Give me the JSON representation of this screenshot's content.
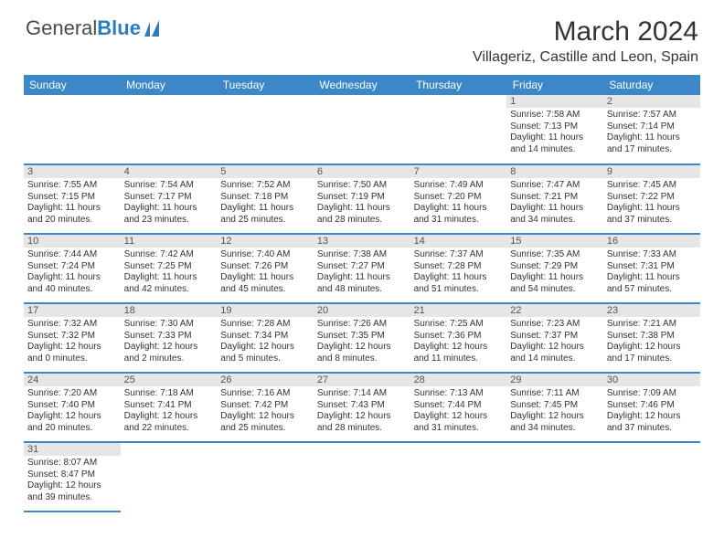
{
  "logo": {
    "text1": "General",
    "text2": "Blue"
  },
  "title": "March 2024",
  "location": "Villageriz, Castille and Leon, Spain",
  "colors": {
    "header_bg": "#3b87c8",
    "header_text": "#ffffff",
    "daynum_bg": "#e6e6e6",
    "row_divider": "#3b87c8",
    "logo_gray": "#4a4a4a",
    "logo_blue": "#2e7cc0"
  },
  "typography": {
    "title_fontsize": 30,
    "location_fontsize": 16,
    "header_fontsize": 12,
    "daynum_fontsize": 11,
    "cell_fontsize": 10
  },
  "weekdays": [
    "Sunday",
    "Monday",
    "Tuesday",
    "Wednesday",
    "Thursday",
    "Friday",
    "Saturday"
  ],
  "leading_blanks": 5,
  "days": [
    {
      "n": "1",
      "sunrise": "7:58 AM",
      "sunset": "7:13 PM",
      "daylight": "11 hours and 14 minutes."
    },
    {
      "n": "2",
      "sunrise": "7:57 AM",
      "sunset": "7:14 PM",
      "daylight": "11 hours and 17 minutes."
    },
    {
      "n": "3",
      "sunrise": "7:55 AM",
      "sunset": "7:15 PM",
      "daylight": "11 hours and 20 minutes."
    },
    {
      "n": "4",
      "sunrise": "7:54 AM",
      "sunset": "7:17 PM",
      "daylight": "11 hours and 23 minutes."
    },
    {
      "n": "5",
      "sunrise": "7:52 AM",
      "sunset": "7:18 PM",
      "daylight": "11 hours and 25 minutes."
    },
    {
      "n": "6",
      "sunrise": "7:50 AM",
      "sunset": "7:19 PM",
      "daylight": "11 hours and 28 minutes."
    },
    {
      "n": "7",
      "sunrise": "7:49 AM",
      "sunset": "7:20 PM",
      "daylight": "11 hours and 31 minutes."
    },
    {
      "n": "8",
      "sunrise": "7:47 AM",
      "sunset": "7:21 PM",
      "daylight": "11 hours and 34 minutes."
    },
    {
      "n": "9",
      "sunrise": "7:45 AM",
      "sunset": "7:22 PM",
      "daylight": "11 hours and 37 minutes."
    },
    {
      "n": "10",
      "sunrise": "7:44 AM",
      "sunset": "7:24 PM",
      "daylight": "11 hours and 40 minutes."
    },
    {
      "n": "11",
      "sunrise": "7:42 AM",
      "sunset": "7:25 PM",
      "daylight": "11 hours and 42 minutes."
    },
    {
      "n": "12",
      "sunrise": "7:40 AM",
      "sunset": "7:26 PM",
      "daylight": "11 hours and 45 minutes."
    },
    {
      "n": "13",
      "sunrise": "7:38 AM",
      "sunset": "7:27 PM",
      "daylight": "11 hours and 48 minutes."
    },
    {
      "n": "14",
      "sunrise": "7:37 AM",
      "sunset": "7:28 PM",
      "daylight": "11 hours and 51 minutes."
    },
    {
      "n": "15",
      "sunrise": "7:35 AM",
      "sunset": "7:29 PM",
      "daylight": "11 hours and 54 minutes."
    },
    {
      "n": "16",
      "sunrise": "7:33 AM",
      "sunset": "7:31 PM",
      "daylight": "11 hours and 57 minutes."
    },
    {
      "n": "17",
      "sunrise": "7:32 AM",
      "sunset": "7:32 PM",
      "daylight": "12 hours and 0 minutes."
    },
    {
      "n": "18",
      "sunrise": "7:30 AM",
      "sunset": "7:33 PM",
      "daylight": "12 hours and 2 minutes."
    },
    {
      "n": "19",
      "sunrise": "7:28 AM",
      "sunset": "7:34 PM",
      "daylight": "12 hours and 5 minutes."
    },
    {
      "n": "20",
      "sunrise": "7:26 AM",
      "sunset": "7:35 PM",
      "daylight": "12 hours and 8 minutes."
    },
    {
      "n": "21",
      "sunrise": "7:25 AM",
      "sunset": "7:36 PM",
      "daylight": "12 hours and 11 minutes."
    },
    {
      "n": "22",
      "sunrise": "7:23 AM",
      "sunset": "7:37 PM",
      "daylight": "12 hours and 14 minutes."
    },
    {
      "n": "23",
      "sunrise": "7:21 AM",
      "sunset": "7:38 PM",
      "daylight": "12 hours and 17 minutes."
    },
    {
      "n": "24",
      "sunrise": "7:20 AM",
      "sunset": "7:40 PM",
      "daylight": "12 hours and 20 minutes."
    },
    {
      "n": "25",
      "sunrise": "7:18 AM",
      "sunset": "7:41 PM",
      "daylight": "12 hours and 22 minutes."
    },
    {
      "n": "26",
      "sunrise": "7:16 AM",
      "sunset": "7:42 PM",
      "daylight": "12 hours and 25 minutes."
    },
    {
      "n": "27",
      "sunrise": "7:14 AM",
      "sunset": "7:43 PM",
      "daylight": "12 hours and 28 minutes."
    },
    {
      "n": "28",
      "sunrise": "7:13 AM",
      "sunset": "7:44 PM",
      "daylight": "12 hours and 31 minutes."
    },
    {
      "n": "29",
      "sunrise": "7:11 AM",
      "sunset": "7:45 PM",
      "daylight": "12 hours and 34 minutes."
    },
    {
      "n": "30",
      "sunrise": "7:09 AM",
      "sunset": "7:46 PM",
      "daylight": "12 hours and 37 minutes."
    },
    {
      "n": "31",
      "sunrise": "8:07 AM",
      "sunset": "8:47 PM",
      "daylight": "12 hours and 39 minutes."
    }
  ],
  "labels": {
    "sunrise": "Sunrise:",
    "sunset": "Sunset:",
    "daylight": "Daylight:"
  }
}
